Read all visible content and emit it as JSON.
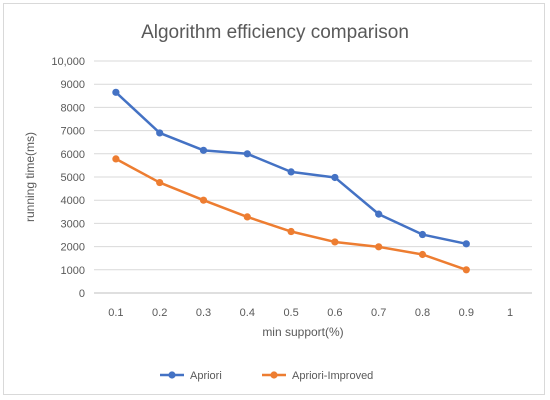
{
  "chart_data": {
    "type": "line",
    "title": "Algorithm efficiency comparison",
    "xlabel": "min support(%)",
    "ylabel": "running time(ms)",
    "x_ticks": [
      "0.1",
      "0.2",
      "0.3",
      "0.4",
      "0.5",
      "0.6",
      "0.7",
      "0.8",
      "0.9",
      "1"
    ],
    "y_ticks": [
      "0",
      "1000",
      "2000",
      "3000",
      "4000",
      "5000",
      "6000",
      "7000",
      "8000",
      "9000",
      "10,000"
    ],
    "ylim": [
      0,
      10000
    ],
    "grid": "horizontal",
    "legend_position": "bottom",
    "series": [
      {
        "name": "Apriori",
        "color": "#4472c4",
        "x": [
          0.1,
          0.2,
          0.3,
          0.4,
          0.5,
          0.6,
          0.7,
          0.8,
          0.9
        ],
        "values": [
          8650,
          6900,
          6150,
          6000,
          5220,
          4980,
          3400,
          2520,
          2120
        ]
      },
      {
        "name": "Apriori-Improved",
        "color": "#ed7d31",
        "x": [
          0.1,
          0.2,
          0.3,
          0.4,
          0.5,
          0.6,
          0.7,
          0.8,
          0.9
        ],
        "values": [
          5780,
          4760,
          4000,
          3280,
          2650,
          2200,
          1990,
          1660,
          1000
        ]
      }
    ]
  }
}
